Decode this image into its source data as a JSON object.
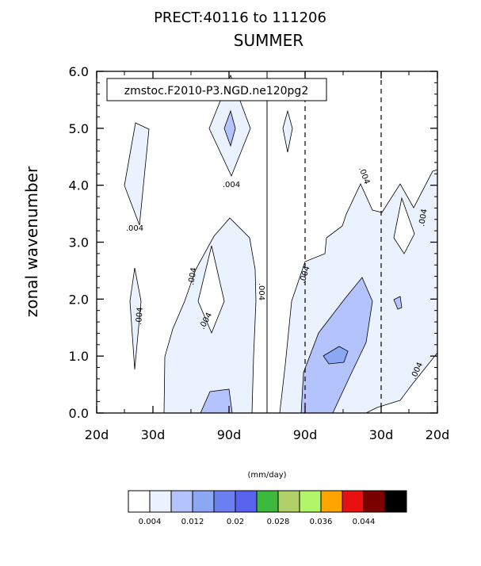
{
  "chart_data": {
    "type": "contour",
    "title": "PRECT:40116 to 111206",
    "subtitle": "SUMMER",
    "ylabel": "zonal wavenumber",
    "xlabel": "",
    "case_label": "zmstoc.F2010-P3.NGD.ne120pg2",
    "y_range": [
      0,
      6
    ],
    "y_ticks": [
      "0.0",
      "1.0",
      "2.0",
      "3.0",
      "4.0",
      "5.0",
      "6.0"
    ],
    "x_ticks": [
      "20d",
      "30d",
      "90d",
      "90d",
      "30d",
      "20d"
    ],
    "contour_labels": [
      ".004",
      ".004",
      ".004",
      ".004",
      ".004",
      ".004",
      ".004",
      ".004",
      ".004",
      ".004",
      ".004",
      ".004"
    ],
    "colorbar": {
      "unit": "(mm/day)",
      "tick_labels": [
        "0.004",
        "0.012",
        "0.02",
        "0.028",
        "0.036",
        "0.044"
      ],
      "colors": [
        "#ffffff",
        "#eaf3fd",
        "#b4c3fb",
        "#8ca8f5",
        "#6b7ff0",
        "#5a63ee",
        "#3cb93c",
        "#b1d06a",
        "#b0f56a",
        "#ffa500",
        "#e81010",
        "#7a0000",
        "#000000"
      ]
    }
  }
}
